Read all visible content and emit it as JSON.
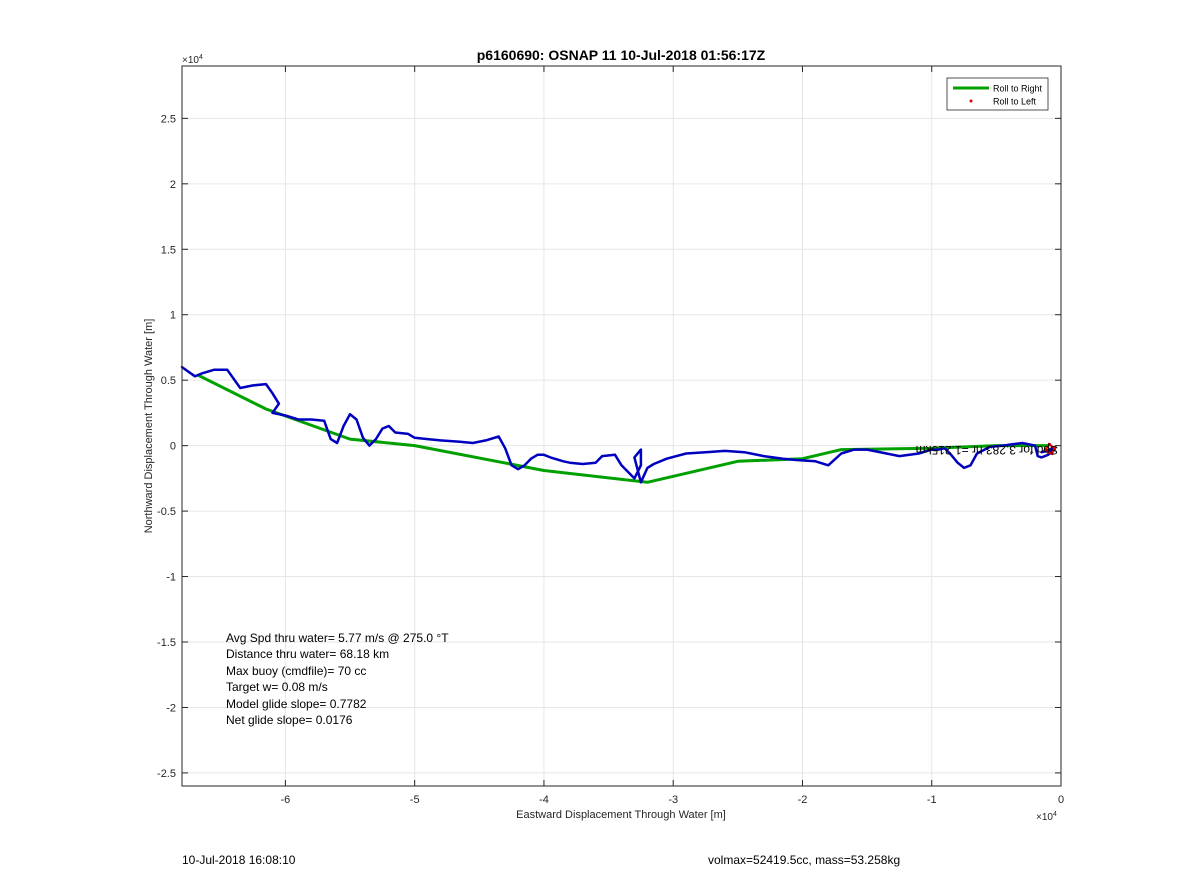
{
  "chart_data": {
    "type": "line",
    "title": "p6160690: OSNAP 11 10-Jul-2018 01:56:17Z",
    "xlabel": "Eastward Displacement Through Water [m]",
    "ylabel": "Northward Displacement Through Water [m]",
    "xlim": [
      -68000,
      0
    ],
    "ylim": [
      -26000,
      29000
    ],
    "x_exponent_label": "×10^4",
    "y_exponent_label": "×10^4",
    "x_ticks": [
      -60000,
      -50000,
      -40000,
      -30000,
      -20000,
      -10000,
      0
    ],
    "x_tick_labels": [
      "-6",
      "-5",
      "-4",
      "-3",
      "-2",
      "-1",
      "0"
    ],
    "y_ticks": [
      -25000,
      -20000,
      -15000,
      -10000,
      -5000,
      0,
      5000,
      10000,
      15000,
      20000,
      25000
    ],
    "y_tick_labels": [
      "-2.5",
      "-2",
      "-1.5",
      "-1",
      "-0.5",
      "0",
      "0.5",
      "1",
      "1.5",
      "2",
      "2.5"
    ],
    "grid": true,
    "legend": {
      "placement": "top-right",
      "entries": [
        "Roll to Right",
        "Roll to Left"
      ]
    },
    "series": [
      {
        "name": "Roll to Right",
        "color": "#00a000",
        "x": [
          -66800,
          -61500,
          -55000,
          -50000,
          -40000,
          -32000,
          -25000,
          -20000,
          -17000,
          -10000,
          -5000,
          -1000
        ],
        "y": [
          5400,
          2800,
          500,
          0,
          -1900,
          -2800,
          -1200,
          -1000,
          -300,
          -200,
          0,
          0
        ]
      },
      {
        "name": "Roll to Left",
        "color": "#e00000",
        "x": [
          -1200,
          -900,
          -500,
          -700,
          -1000
        ],
        "y": [
          -300,
          100,
          -200,
          -600,
          -500
        ]
      },
      {
        "name": "track",
        "color": "#0000c0",
        "x": [
          -68000,
          -67000,
          -66500,
          -65500,
          -64500,
          -63500,
          -62500,
          -61500,
          -61000,
          -60500,
          -61000,
          -60000,
          -59000,
          -58000,
          -57000,
          -56500,
          -56000,
          -55500,
          -55000,
          -54500,
          -54000,
          -53500,
          -53000,
          -52500,
          -52000,
          -51500,
          -50500,
          -50000,
          -49000,
          -48000,
          -46500,
          -45500,
          -44500,
          -43500,
          -43000,
          -42500,
          -42000,
          -41500,
          -41000,
          -40500,
          -40000,
          -39500,
          -38500,
          -38000,
          -37000,
          -36000,
          -35500,
          -34500,
          -34000,
          -33000,
          -32500,
          -32500,
          -33000,
          -32500,
          -32000,
          -31500,
          -30500,
          -29000,
          -27500,
          -26000,
          -24500,
          -23000,
          -21500,
          -20500,
          -19000,
          -18000,
          -17000,
          -16000,
          -15000,
          -13500,
          -12500,
          -11000,
          -10000,
          -9500,
          -9000,
          -8500,
          -8000,
          -7500,
          -7000,
          -6500,
          -5500,
          -4500,
          -3000,
          -2000,
          -1800,
          -1500,
          -1000,
          -500,
          -1000,
          -1500,
          -600
        ],
        "y": [
          6000,
          5300,
          5500,
          5800,
          5800,
          4400,
          4600,
          4700,
          4000,
          3200,
          2500,
          2300,
          2000,
          2000,
          1900,
          500,
          200,
          1500,
          2400,
          2000,
          600,
          0,
          500,
          1300,
          1500,
          1000,
          900,
          600,
          500,
          400,
          300,
          200,
          400,
          700,
          -200,
          -1500,
          -1800,
          -1500,
          -1000,
          -700,
          -700,
          -900,
          -1200,
          -1300,
          -1400,
          -1300,
          -800,
          -700,
          -1500,
          -2500,
          -1500,
          -300,
          -900,
          -2800,
          -1700,
          -1400,
          -1000,
          -600,
          -500,
          -400,
          -500,
          -800,
          -1000,
          -1100,
          -1200,
          -1500,
          -600,
          -300,
          -300,
          -600,
          -800,
          -600,
          -300,
          -300,
          -200,
          -700,
          -1300,
          -1700,
          -1500,
          -600,
          -100,
          0,
          200,
          0,
          -800,
          -900,
          -700,
          -300,
          -400,
          -500,
          -200
        ]
      }
    ],
    "annotations": {
      "stats_lines": [
        "Avg Spd thru water=  5.77 m/s @ 275.0 °T",
        "Distance thru water= 68.18 km",
        "Max buoy (cmdfile)= 70 cc",
        "Target w= 0.08 m/s",
        "Model glide slope= 0.7782",
        "Net glide slope= 0.0176"
      ],
      "mirrored_label": "Spd for 3.283 hr =1.215km"
    }
  },
  "footer": {
    "left": "10-Jul-2018 16:08:10",
    "right": "volmax=52419.5cc, mass=53.258kg"
  }
}
